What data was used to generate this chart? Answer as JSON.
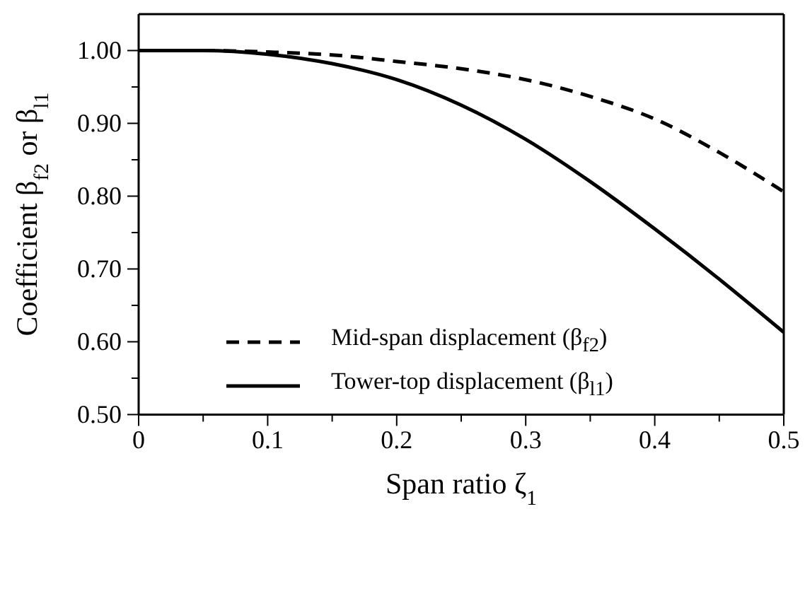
{
  "chart_data": {
    "type": "line",
    "xlabel": "Span ratio ζ$_{1}$",
    "ylabel": "Coefficient β$_{f2}$ or β$_{l1}$",
    "x": [
      0,
      0.05,
      0.1,
      0.15,
      0.2,
      0.25,
      0.3,
      0.35,
      0.4,
      0.45,
      0.5
    ],
    "series": [
      {
        "name": "Mid-span displacement (β$_{f2}$)",
        "color": "#000000",
        "line_style": "dashed",
        "values": [
          1.0,
          1.0,
          0.998,
          0.994,
          0.985,
          0.975,
          0.96,
          0.937,
          0.906,
          0.86,
          0.806
        ]
      },
      {
        "name": "Tower-top displacement (β$_{l1}$)",
        "color": "#000000",
        "line_style": "solid",
        "values": [
          1.0,
          1.0,
          0.995,
          0.982,
          0.96,
          0.925,
          0.878,
          0.82,
          0.755,
          0.686,
          0.613
        ]
      }
    ],
    "xlim": [
      0,
      0.5
    ],
    "xticks": [
      0,
      {
        "value": 0.05,
        "label": null
      },
      0.1,
      {
        "value": 0.15,
        "label": null
      },
      0.2,
      {
        "value": 0.25,
        "label": null
      },
      0.3,
      {
        "value": 0.35,
        "label": null
      },
      0.4,
      {
        "value": 0.45,
        "label": null
      },
      0.5
    ],
    "ylim": [
      0.5,
      1.05
    ],
    "yticks": [
      {
        "value": 0.5,
        "label": "0.50"
      },
      {
        "value": 0.55,
        "label": null
      },
      {
        "value": 0.6,
        "label": "0.60"
      },
      {
        "value": 0.65,
        "label": null
      },
      {
        "value": 0.7,
        "label": "0.70"
      },
      {
        "value": 0.75,
        "label": null
      },
      {
        "value": 0.8,
        "label": "0.80"
      },
      {
        "value": 0.85,
        "label": null
      },
      {
        "value": 0.9,
        "label": "0.90"
      },
      {
        "value": 0.95,
        "label": null
      },
      {
        "value": 1.0,
        "label": "1.00"
      }
    ],
    "legend": "left",
    "marker": "none",
    "grid": false
  }
}
